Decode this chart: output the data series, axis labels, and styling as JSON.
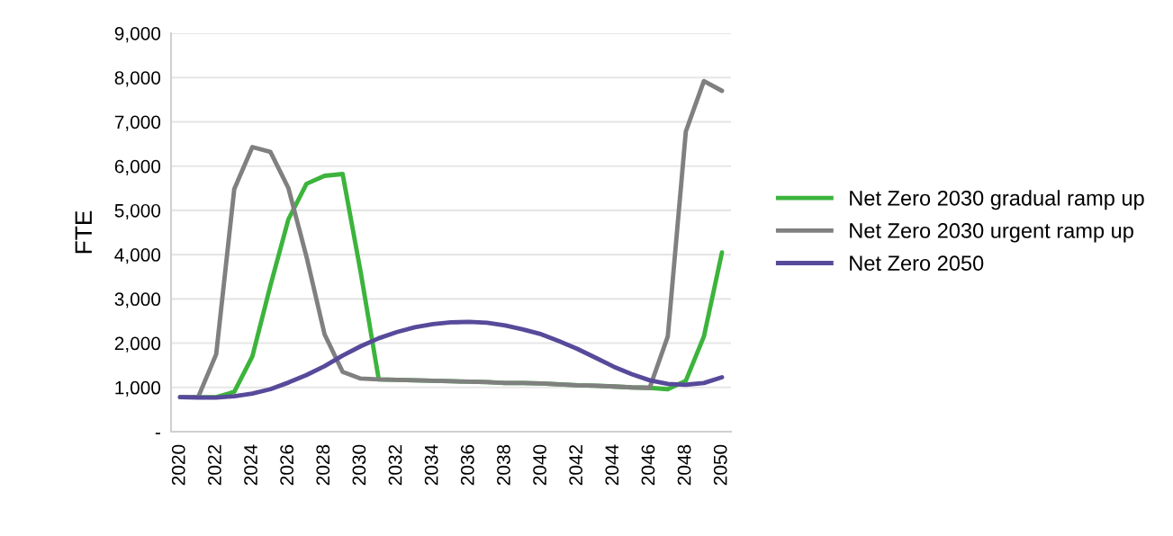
{
  "chart_data": {
    "type": "line",
    "ylabel": "FTE",
    "categories": [
      "2020",
      null,
      "2022",
      null,
      "2024",
      null,
      "2026",
      null,
      "2028",
      null,
      "2030",
      null,
      "2032",
      null,
      "2034",
      null,
      "2036",
      null,
      "2038",
      null,
      "2040",
      null,
      "2042",
      null,
      "2044",
      null,
      "2046",
      null,
      "2048",
      null,
      "2050"
    ],
    "series": [
      {
        "name": "Net Zero 2030 gradual ramp up",
        "color": "#3cb43c",
        "values": [
          780,
          780,
          780,
          900,
          1700,
          3300,
          4800,
          5600,
          5780,
          5820,
          3600,
          1180,
          1170,
          1160,
          1150,
          1140,
          1130,
          1120,
          1100,
          1100,
          1090,
          1070,
          1050,
          1040,
          1020,
          1000,
          990,
          960,
          1150,
          2150,
          4050
        ]
      },
      {
        "name": "Net Zero 2030 urgent ramp up",
        "color": "#808080",
        "values": [
          780,
          780,
          1750,
          5480,
          6430,
          6320,
          5500,
          3950,
          2200,
          1350,
          1200,
          1180,
          1170,
          1160,
          1150,
          1140,
          1130,
          1120,
          1100,
          1100,
          1090,
          1070,
          1050,
          1040,
          1020,
          1000,
          990,
          2150,
          6780,
          7920,
          7700
        ]
      },
      {
        "name": "Net Zero 2050",
        "color": "#574a9a",
        "values": [
          780,
          770,
          770,
          800,
          860,
          960,
          1110,
          1280,
          1480,
          1720,
          1930,
          2110,
          2250,
          2360,
          2430,
          2470,
          2480,
          2460,
          2400,
          2310,
          2200,
          2040,
          1870,
          1670,
          1470,
          1300,
          1160,
          1080,
          1060,
          1100,
          1230
        ]
      }
    ],
    "ylim": [
      0,
      9000
    ],
    "yticks": [
      {
        "value": 0,
        "label": "-"
      },
      {
        "value": 1000,
        "label": "1,000"
      },
      {
        "value": 2000,
        "label": "2,000"
      },
      {
        "value": 3000,
        "label": "3,000"
      },
      {
        "value": 4000,
        "label": "4,000"
      },
      {
        "value": 5000,
        "label": "5,000"
      },
      {
        "value": 6000,
        "label": "6,000"
      },
      {
        "value": 7000,
        "label": "7,000"
      },
      {
        "value": 8000,
        "label": "8,000"
      },
      {
        "value": 9000,
        "label": "9,000"
      }
    ],
    "grid": "y",
    "legend": "right",
    "marker": "none",
    "line_style": "solid"
  }
}
